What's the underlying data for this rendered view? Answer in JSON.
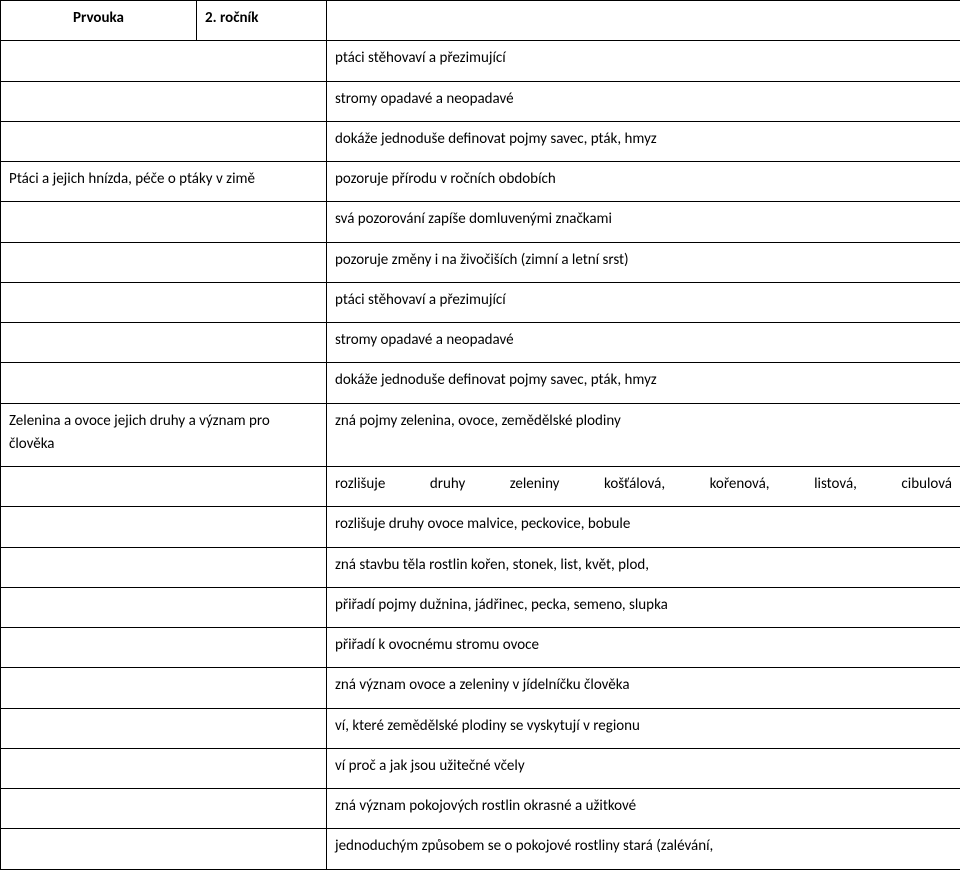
{
  "header": {
    "subject": "Prvouka",
    "grade": "2. ročník"
  },
  "rows": [
    {
      "left": "",
      "right": "ptáci stěhovaví a přezimující"
    },
    {
      "left": "",
      "right": "stromy opadavé a neopadavé"
    },
    {
      "left": "",
      "right": "dokáže jednoduše definovat pojmy savec, pták, hmyz"
    },
    {
      "left": "Ptáci a jejich hnízda, péče o ptáky v zimě",
      "right": "pozoruje přírodu v ročních obdobích"
    },
    {
      "left": "",
      "right": "svá pozorování zapíše domluvenými značkami"
    },
    {
      "left": "",
      "right": "pozoruje změny i na živočiších (zimní a letní srst)"
    },
    {
      "left": "",
      "right": "ptáci stěhovaví a přezimující"
    },
    {
      "left": "",
      "right": "stromy opadavé a neopadavé"
    },
    {
      "left": "",
      "right": "dokáže jednoduše definovat pojmy savec, pták, hmyz"
    },
    {
      "left": "Zelenina a ovoce jejich druhy a význam pro člověka",
      "right": "zná pojmy zelenina, ovoce, zemědělské plodiny"
    },
    {
      "left": "",
      "right": "rozlišuje druhy zeleniny košťálová, kořenová, listová, cibulová",
      "justify": true
    },
    {
      "left": "",
      "right": "rozlišuje druhy ovoce malvice, peckovice, bobule"
    },
    {
      "left": "",
      "right": "zná stavbu těla rostlin kořen, stonek, list, květ, plod,"
    },
    {
      "left": "",
      "right": "přiřadí pojmy dužnina, jádřinec, pecka, semeno, slupka"
    },
    {
      "left": "",
      "right": "přiřadí k ovocnému stromu ovoce"
    },
    {
      "left": "",
      "right": "zná význam ovoce a zeleniny v jídelníčku člověka"
    },
    {
      "left": "",
      "right": "ví, které zemědělské plodiny se vyskytují v regionu"
    },
    {
      "left": "",
      "right": "ví proč a jak jsou užitečné včely"
    },
    {
      "left": "",
      "right": "zná význam pokojových rostlin okrasné a užitkové"
    },
    {
      "left": "",
      "right": "jednoduchým způsobem se o pokojové rostliny stará (zalévání,"
    }
  ]
}
